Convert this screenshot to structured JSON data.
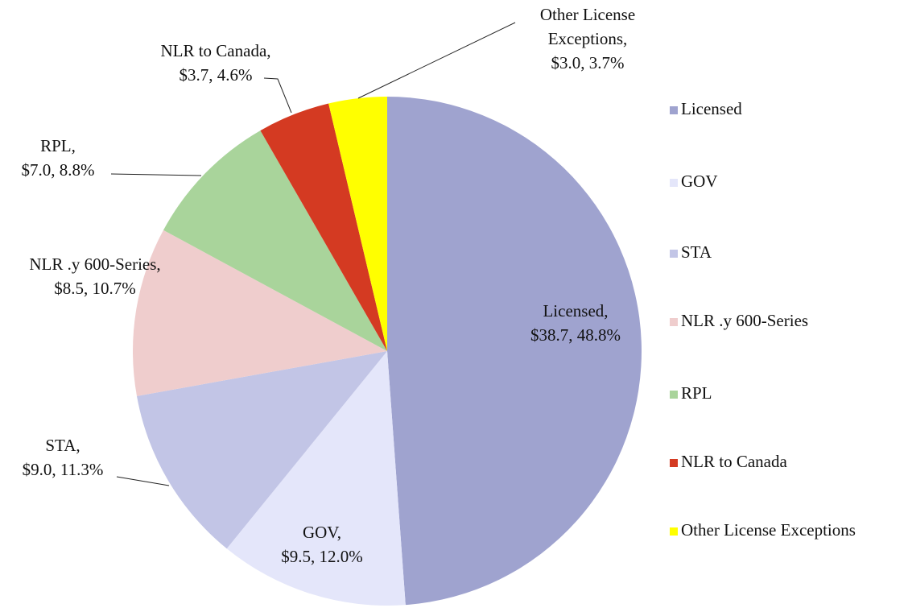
{
  "chart_data": {
    "type": "pie",
    "categories": [
      "Licensed",
      "GOV",
      "STA",
      "NLR .y 600-Series",
      "RPL",
      "NLR to Canada",
      "Other License Exceptions"
    ],
    "values": [
      48.8,
      12.0,
      11.3,
      10.7,
      8.8,
      4.6,
      3.7
    ],
    "value_labels": [
      [
        "Licensed,",
        "$38.7, 48.8%"
      ],
      [
        "GOV,",
        "$9.5, 12.0%"
      ],
      [
        "STA,",
        "$9.0, 11.3%"
      ],
      [
        "NLR .y 600-Series,",
        "$8.5, 10.7%"
      ],
      [
        "RPL,",
        "$7.0, 8.8%"
      ],
      [
        "NLR to Canada,",
        "$3.7, 4.6%"
      ],
      [
        "Other License",
        "Exceptions,",
        "$3.0, 3.7%"
      ]
    ],
    "colors": [
      "#9fa3cf",
      "#e4e6fa",
      "#c2c5e6",
      "#efcdcd",
      "#a9d49b",
      "#d43a22",
      "#ffff00"
    ],
    "legend": "right"
  }
}
